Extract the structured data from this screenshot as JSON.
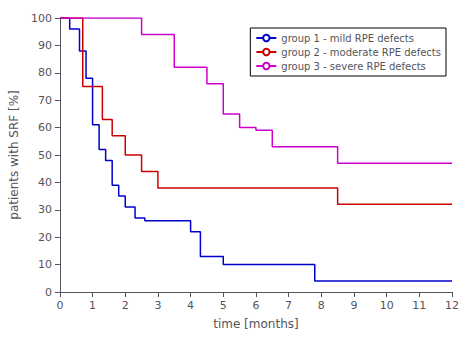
{
  "chart_data": {
    "type": "step",
    "xlabel": "time [months]",
    "ylabel": "patients with SRF [%]",
    "xlim": [
      0,
      12
    ],
    "ylim": [
      0,
      100
    ],
    "xticks": [
      0,
      1,
      2,
      3,
      4,
      5,
      6,
      7,
      8,
      9,
      10,
      11,
      12
    ],
    "yticks": [
      0,
      10,
      20,
      30,
      40,
      50,
      60,
      70,
      80,
      90,
      100
    ],
    "grid": false,
    "legend": "upper right",
    "series": [
      {
        "name": "group 1 - mild RPE defects",
        "color": "#0000cc",
        "x": [
          0,
          0.3,
          0.6,
          0.8,
          1.0,
          1.2,
          1.4,
          1.6,
          1.8,
          2.0,
          2.3,
          2.6,
          3.0,
          3.5,
          4.0,
          4.3,
          5.0,
          7.8,
          12
        ],
        "values": [
          100,
          96,
          88,
          78,
          61,
          52,
          48,
          39,
          35,
          31,
          27,
          26,
          26,
          26,
          22,
          13,
          10,
          4,
          4
        ]
      },
      {
        "name": "group 2 - moderate RPE defects",
        "color": "#cc0000",
        "x": [
          0,
          0.7,
          1.0,
          1.3,
          1.6,
          2.0,
          2.5,
          3.0,
          3.5,
          4.5,
          6.0,
          8.5,
          9.0,
          12
        ],
        "values": [
          100,
          75,
          75,
          63,
          57,
          50,
          44,
          38,
          38,
          38,
          38,
          32,
          32,
          32
        ]
      },
      {
        "name": "group 3 - severe RPE defects",
        "color": "#cc00cc",
        "x": [
          0,
          2.0,
          2.5,
          3.5,
          4.5,
          5.0,
          5.5,
          6.0,
          6.5,
          7.0,
          8.5,
          9.0,
          12
        ],
        "values": [
          100,
          100,
          94,
          82,
          76,
          65,
          60,
          59,
          53,
          53,
          47,
          47,
          47
        ]
      }
    ]
  }
}
